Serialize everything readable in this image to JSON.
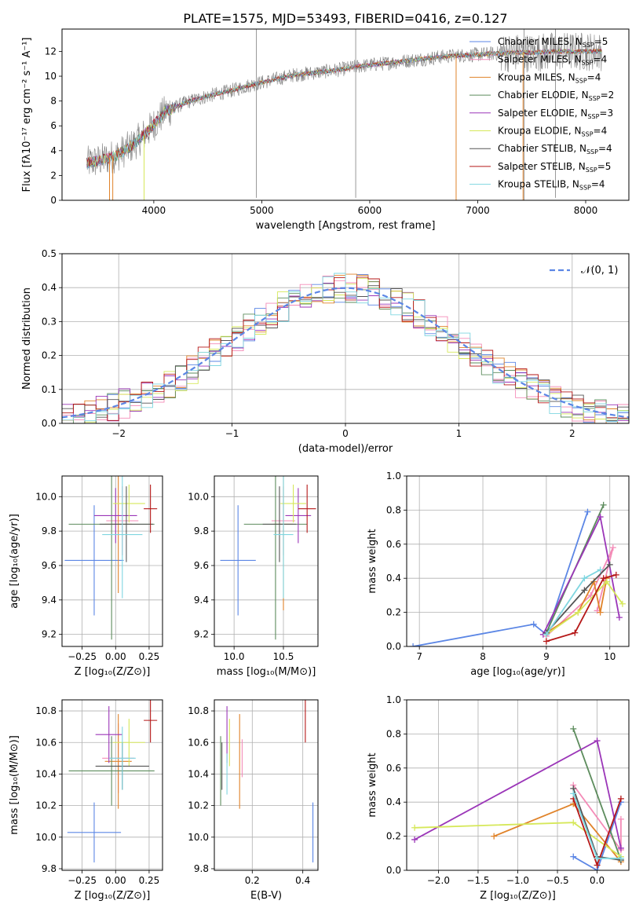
{
  "figure_title": "PLATE=1575, MJD=53493, FIBERID=0416, z=0.127",
  "colors": {
    "models": [
      "#5b86e5",
      "#f48bb7",
      "#e0832a",
      "#5d8c5d",
      "#9b36b8",
      "#d6e85a",
      "#555555",
      "#b51818",
      "#7fd6e0"
    ],
    "data": "#808080",
    "grid": "#b0b0b0"
  },
  "chart_data": [
    {
      "id": "spectrum",
      "type": "line",
      "xlabel": "wavelength [Angstrom, rest frame]",
      "ylabel": "Flux [fλ10⁻¹⁷ erg cm⁻² s⁻¹ A⁻¹]",
      "xlim": [
        3150,
        8400
      ],
      "ylim": [
        0,
        13.8
      ],
      "xticks": [
        4000,
        5000,
        6000,
        7000,
        8000
      ],
      "yticks": [
        0,
        2,
        4,
        6,
        8,
        10,
        12
      ],
      "grid": false,
      "legend_position": "top-right",
      "continuum": {
        "x": [
          3380,
          3500,
          3650,
          3800,
          3950,
          4100,
          4300,
          4500,
          4700,
          4900,
          5100,
          5300,
          5500,
          5700,
          5900,
          6100,
          6300,
          6500,
          6700,
          6900,
          7100,
          7300,
          7500,
          7700,
          7900,
          8150
        ],
        "y": [
          3.0,
          3.2,
          3.6,
          4.4,
          5.6,
          7.1,
          7.9,
          8.4,
          8.8,
          9.3,
          9.7,
          10.1,
          10.3,
          10.5,
          10.8,
          11.0,
          11.2,
          11.4,
          11.6,
          11.7,
          11.8,
          11.9,
          11.9,
          12.0,
          12.0,
          12.0
        ]
      },
      "series": [
        {
          "label": "Chabrier MILES, N",
          "sub": "SSP",
          "value": "=5"
        },
        {
          "label": "Salpeter MILES, N",
          "sub": "SSP",
          "value": "=4"
        },
        {
          "label": "Kroupa MILES, N",
          "sub": "SSP",
          "value": "=4"
        },
        {
          "label": "Chabrier ELODIE, N",
          "sub": "SSP",
          "value": "=2"
        },
        {
          "label": "Salpeter ELODIE, N",
          "sub": "SSP",
          "value": "=3"
        },
        {
          "label": "Kroupa ELODIE, N",
          "sub": "SSP",
          "value": "=4"
        },
        {
          "label": "Chabrier STELIB, N",
          "sub": "SSP",
          "value": "=4"
        },
        {
          "label": "Salpeter STELIB, N",
          "sub": "SSP",
          "value": "=5"
        },
        {
          "label": "Kroupa STELIB, N",
          "sub": "SSP",
          "value": "=4"
        }
      ]
    },
    {
      "id": "residuals",
      "type": "line",
      "xlabel": "(data-model)/error",
      "ylabel": "Normed distribution",
      "xlim": [
        -2.5,
        2.5
      ],
      "ylim": [
        0,
        0.5
      ],
      "xticks": [
        -2,
        -1,
        0,
        1,
        2
      ],
      "yticks": [
        0.0,
        0.1,
        0.2,
        0.3,
        0.4,
        0.5
      ],
      "grid": true,
      "legend_position": "top-right",
      "legend_label": "𝒩(0, 1)",
      "normal_curve": {
        "mean": 0,
        "sigma": 1
      }
    },
    {
      "id": "age_vs_Z",
      "type": "scatter",
      "xlabel": "Z [log₁₀(Z/Z⊙)]",
      "ylabel": "age  [log₁₀(age/yr)]",
      "xlim": [
        -0.4,
        0.35
      ],
      "ylim": [
        9.13,
        10.12
      ],
      "xticks": [
        -0.25,
        0.0,
        0.25
      ],
      "yticks": [
        9.2,
        9.4,
        9.6,
        9.8,
        10.0
      ],
      "grid": true,
      "points": [
        {
          "x": -0.16,
          "y": 9.63,
          "xerr": 0.22,
          "yerr": 0.32
        },
        {
          "x": 0.05,
          "y": 9.86,
          "xerr": 0.12,
          "yerr": 0.2
        },
        {
          "x": 0.02,
          "y": 9.84,
          "xerr": 0.1,
          "yerr": 0.4
        },
        {
          "x": -0.03,
          "y": 9.84,
          "xerr": 0.32,
          "yerr": 0.67
        },
        {
          "x": 0.0,
          "y": 9.89,
          "xerr": 0.16,
          "yerr": 0.16
        },
        {
          "x": 0.1,
          "y": 9.96,
          "xerr": 0.12,
          "yerr": 0.11
        },
        {
          "x": 0.08,
          "y": 9.84,
          "xerr": 0.2,
          "yerr": 0.22
        },
        {
          "x": 0.26,
          "y": 9.93,
          "xerr": 0.05,
          "yerr": 0.14
        },
        {
          "x": 0.05,
          "y": 9.78,
          "xerr": 0.15,
          "yerr": 0.37
        }
      ]
    },
    {
      "id": "age_vs_mass",
      "type": "scatter",
      "xlabel": "mass [log₁₀(M/M⊙)]",
      "ylabel": "",
      "xlim": [
        9.8,
        10.85
      ],
      "ylim": [
        9.13,
        10.12
      ],
      "xticks": [
        10.0,
        10.5
      ],
      "yticks": [
        9.2,
        9.4,
        9.6,
        9.8,
        10.0
      ],
      "grid": true,
      "points": [
        {
          "x": 10.04,
          "y": 9.63,
          "xerr": 0.18,
          "yerr": 0.32
        },
        {
          "x": 10.5,
          "y": 9.86,
          "xerr": 0.12,
          "yerr": 0.2
        },
        {
          "x": 10.5,
          "y": 9.84,
          "xerr": 0.1,
          "yerr": 0.5
        },
        {
          "x": 10.42,
          "y": 9.84,
          "xerr": 0.32,
          "yerr": 0.67
        },
        {
          "x": 10.65,
          "y": 9.89,
          "xerr": 0.13,
          "yerr": 0.16
        },
        {
          "x": 10.6,
          "y": 9.96,
          "xerr": 0.13,
          "yerr": 0.11
        },
        {
          "x": 10.46,
          "y": 9.84,
          "xerr": 0.17,
          "yerr": 0.22
        },
        {
          "x": 10.74,
          "y": 9.93,
          "xerr": 0.09,
          "yerr": 0.14
        },
        {
          "x": 10.5,
          "y": 9.78,
          "xerr": 0.1,
          "yerr": 0.37
        }
      ]
    },
    {
      "id": "weight_vs_age",
      "type": "line",
      "xlabel": "age  [log₁₀(age/yr)]",
      "ylabel": "mass weight",
      "xlim": [
        6.8,
        10.3
      ],
      "ylim": [
        0,
        1.0
      ],
      "xticks": [
        7,
        8,
        9,
        10
      ],
      "yticks": [
        0.0,
        0.2,
        0.4,
        0.6,
        0.8,
        1.0
      ],
      "grid": true,
      "series": [
        {
          "x": [
            6.9,
            8.8,
            9.0,
            9.65
          ],
          "y": [
            0.0,
            0.13,
            0.07,
            0.79
          ]
        },
        {
          "x": [
            9.0,
            9.7,
            10.05,
            9.8
          ],
          "y": [
            0.06,
            0.3,
            0.58,
            0.21
          ]
        },
        {
          "x": [
            9.0,
            9.5,
            9.75,
            9.85,
            9.95
          ],
          "y": [
            0.08,
            0.2,
            0.38,
            0.2,
            0.4
          ]
        },
        {
          "x": [
            9.0,
            9.9
          ],
          "y": [
            0.08,
            0.83
          ]
        },
        {
          "x": [
            8.95,
            9.85,
            10.15
          ],
          "y": [
            0.07,
            0.76,
            0.17
          ]
        },
        {
          "x": [
            9.0,
            9.5,
            9.95,
            10.2
          ],
          "y": [
            0.07,
            0.2,
            0.38,
            0.25
          ]
        },
        {
          "x": [
            9.0,
            9.6,
            10.0
          ],
          "y": [
            0.08,
            0.33,
            0.48
          ]
        },
        {
          "x": [
            9.0,
            9.45,
            9.9,
            10.1
          ],
          "y": [
            0.03,
            0.08,
            0.4,
            0.42
          ]
        },
        {
          "x": [
            9.0,
            9.6,
            9.85
          ],
          "y": [
            0.07,
            0.4,
            0.45
          ]
        }
      ]
    },
    {
      "id": "mass_vs_Z",
      "type": "scatter",
      "xlabel": "Z [log₁₀(Z/Z⊙)]",
      "ylabel": "mass [log₁₀(M/M⊙)]",
      "xlim": [
        -0.4,
        0.35
      ],
      "ylim": [
        9.79,
        10.87
      ],
      "xticks": [
        -0.25,
        0.0,
        0.25
      ],
      "yticks": [
        9.8,
        10.0,
        10.2,
        10.4,
        10.6,
        10.8
      ],
      "grid": true,
      "points": [
        {
          "x": -0.16,
          "y": 10.03,
          "xerr": 0.2,
          "yerr": 0.19
        },
        {
          "x": 0.02,
          "y": 10.5,
          "xerr": 0.12,
          "yerr": 0.22
        },
        {
          "x": 0.02,
          "y": 10.48,
          "xerr": 0.1,
          "yerr": 0.3
        },
        {
          "x": -0.03,
          "y": 10.42,
          "xerr": 0.32,
          "yerr": 0.22
        },
        {
          "x": -0.05,
          "y": 10.65,
          "xerr": 0.1,
          "yerr": 0.18
        },
        {
          "x": 0.1,
          "y": 10.6,
          "xerr": 0.12,
          "yerr": 0.15
        },
        {
          "x": 0.05,
          "y": 10.45,
          "xerr": 0.2,
          "yerr": 0.15
        },
        {
          "x": 0.26,
          "y": 10.74,
          "xerr": 0.05,
          "yerr": 0.14
        },
        {
          "x": 0.05,
          "y": 10.5,
          "xerr": 0.1,
          "yerr": 0.2
        }
      ]
    },
    {
      "id": "mass_vs_ebv",
      "type": "scatter",
      "xlabel": "E(B-V)",
      "ylabel": "",
      "xlim": [
        0.05,
        0.46
      ],
      "ylim": [
        9.79,
        10.87
      ],
      "xticks": [
        0.2,
        0.4
      ],
      "yticks": [
        9.8,
        10.0,
        10.2,
        10.4,
        10.6,
        10.8
      ],
      "grid": true,
      "points": [
        {
          "x": 0.44,
          "y": 10.03,
          "yerr": 0.19
        },
        {
          "x": 0.16,
          "y": 10.5,
          "yerr": 0.12
        },
        {
          "x": 0.15,
          "y": 10.48,
          "yerr": 0.3
        },
        {
          "x": 0.075,
          "y": 10.42,
          "yerr": 0.22
        },
        {
          "x": 0.1,
          "y": 10.65,
          "yerr": 0.18
        },
        {
          "x": 0.11,
          "y": 10.6,
          "yerr": 0.15
        },
        {
          "x": 0.08,
          "y": 10.45,
          "yerr": 0.15
        },
        {
          "x": 0.41,
          "y": 10.74,
          "yerr": 0.14
        },
        {
          "x": 0.1,
          "y": 10.4,
          "yerr": 0.13
        }
      ]
    },
    {
      "id": "weight_vs_Z",
      "type": "line",
      "xlabel": "Z [log₁₀(Z/Z⊙)]",
      "ylabel": "mass weight",
      "xlim": [
        -2.4,
        0.4
      ],
      "ylim": [
        0,
        1.0
      ],
      "xticks": [
        -2.0,
        -1.5,
        -1.0,
        -0.5,
        0.0
      ],
      "yticks": [
        0.0,
        0.2,
        0.4,
        0.6,
        0.8,
        1.0
      ],
      "grid": true,
      "series": [
        {
          "x": [
            -0.3,
            0.0,
            0.3
          ],
          "y": [
            0.08,
            0.0,
            0.4
          ]
        },
        {
          "x": [
            -0.3,
            0.3,
            0.3
          ],
          "y": [
            0.5,
            0.12,
            0.3
          ]
        },
        {
          "x": [
            -1.3,
            -0.3,
            0.3
          ],
          "y": [
            0.2,
            0.39,
            0.05
          ]
        },
        {
          "x": [
            -0.3,
            0.3
          ],
          "y": [
            0.83,
            0.06
          ]
        },
        {
          "x": [
            -2.3,
            0.0,
            0.3
          ],
          "y": [
            0.18,
            0.76,
            0.13
          ]
        },
        {
          "x": [
            -2.3,
            -0.3,
            0.3
          ],
          "y": [
            0.25,
            0.28,
            0.08
          ]
        },
        {
          "x": [
            -0.3,
            0.0,
            0.3
          ],
          "y": [
            0.48,
            0.08,
            0.06
          ]
        },
        {
          "x": [
            -0.3,
            0.0,
            0.3
          ],
          "y": [
            0.42,
            0.03,
            0.42
          ]
        },
        {
          "x": [
            -0.3,
            0.0,
            0.3
          ],
          "y": [
            0.45,
            0.07,
            0.07
          ]
        }
      ]
    }
  ]
}
